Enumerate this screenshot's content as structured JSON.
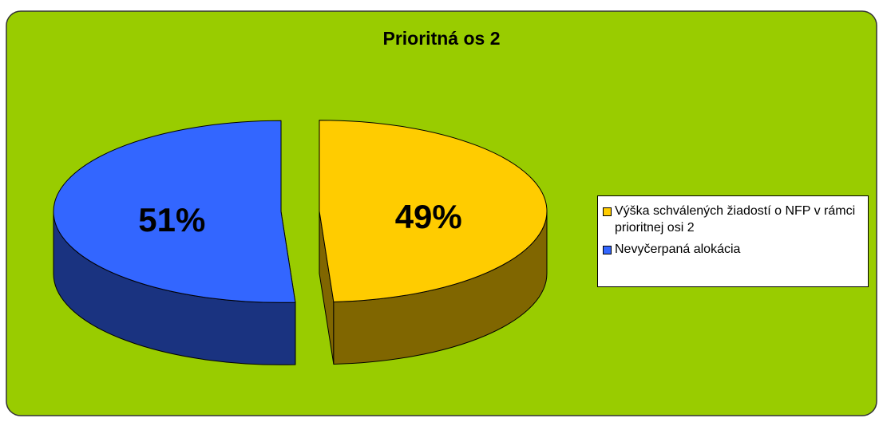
{
  "chart_data": {
    "type": "pie3d",
    "title": "Prioritná os 2",
    "categories": [
      "Výška schválených žiadostí o NFP v rámci prioritnej osi 2",
      "Nevyčerpaná alokácia"
    ],
    "values": [
      49,
      51
    ],
    "value_labels": [
      "49%",
      "51%"
    ],
    "colors": [
      "#ffcc00",
      "#3366ff"
    ],
    "side_colors": [
      "#806600",
      "#1a3380"
    ],
    "background": "#99cc00",
    "legend": "right"
  }
}
